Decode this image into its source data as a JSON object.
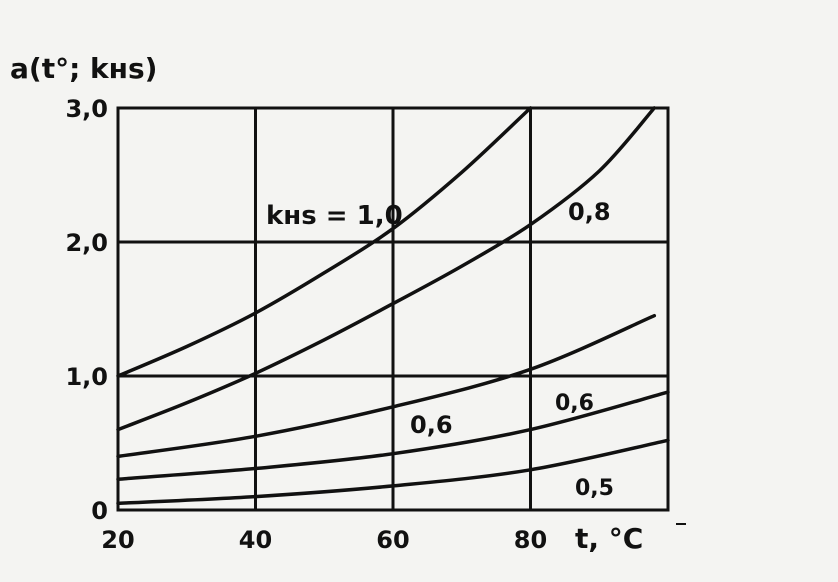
{
  "chart_data": {
    "type": "line",
    "ylabel": "a(t°; kнs)",
    "xlabel": "t, °C",
    "xlim": [
      20,
      100
    ],
    "ylim": [
      0,
      3.0
    ],
    "x_ticks": [
      20,
      40,
      60,
      80
    ],
    "x_tick_labels": [
      "20",
      "40",
      "60",
      "80"
    ],
    "y_ticks": [
      0,
      1.0,
      2.0,
      3.0
    ],
    "y_tick_labels": [
      "0",
      "1,0",
      "2,0",
      "3,0"
    ],
    "grid": true,
    "series": [
      {
        "name": "kнs = 1,0",
        "x": [
          20,
          30,
          40,
          50,
          60,
          70,
          80
        ],
        "y": [
          1.0,
          1.22,
          1.47,
          1.77,
          2.1,
          2.52,
          3.0
        ]
      },
      {
        "name": "0,8",
        "x": [
          20,
          30,
          40,
          50,
          60,
          70,
          80,
          90,
          98
        ],
        "y": [
          0.6,
          0.8,
          1.02,
          1.27,
          1.54,
          1.82,
          2.13,
          2.53,
          3.0
        ]
      },
      {
        "name": "0,6",
        "x": [
          20,
          40,
          60,
          80,
          98
        ],
        "y": [
          0.4,
          0.55,
          0.77,
          1.05,
          1.45
        ]
      },
      {
        "name": "0,6",
        "x": [
          20,
          40,
          60,
          80,
          100
        ],
        "y": [
          0.23,
          0.31,
          0.42,
          0.6,
          0.88
        ]
      },
      {
        "name": "0,5",
        "x": [
          20,
          40,
          60,
          80,
          100
        ],
        "y": [
          0.05,
          0.1,
          0.18,
          0.3,
          0.52
        ]
      }
    ]
  }
}
